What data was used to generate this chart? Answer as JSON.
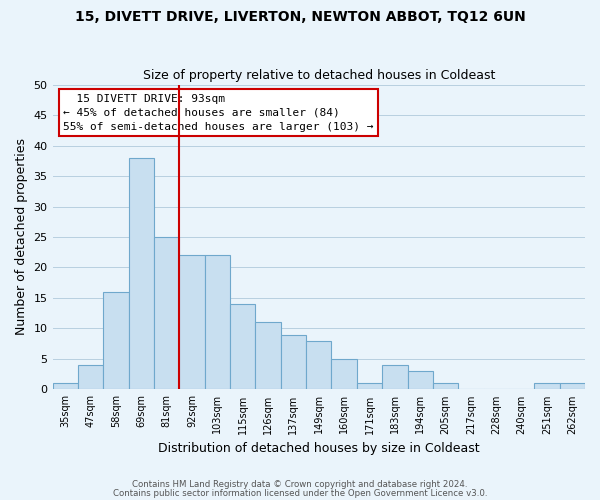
{
  "title1": "15, DIVETT DRIVE, LIVERTON, NEWTON ABBOT, TQ12 6UN",
  "title2": "Size of property relative to detached houses in Coldeast",
  "xlabel": "Distribution of detached houses by size in Coldeast",
  "ylabel": "Number of detached properties",
  "footer1": "Contains HM Land Registry data © Crown copyright and database right 2024.",
  "footer2": "Contains public sector information licensed under the Open Government Licence v3.0.",
  "bins": [
    "35sqm",
    "47sqm",
    "58sqm",
    "69sqm",
    "81sqm",
    "92sqm",
    "103sqm",
    "115sqm",
    "126sqm",
    "137sqm",
    "149sqm",
    "160sqm",
    "171sqm",
    "183sqm",
    "194sqm",
    "205sqm",
    "217sqm",
    "228sqm",
    "240sqm",
    "251sqm",
    "262sqm"
  ],
  "values": [
    1,
    4,
    16,
    38,
    25,
    22,
    22,
    14,
    11,
    9,
    8,
    5,
    1,
    4,
    3,
    1,
    0,
    0,
    0,
    1,
    1
  ],
  "bar_color": "#c8dff0",
  "bar_edge_color": "#6fa8cc",
  "vline_x_index": 5,
  "vline_color": "#cc0000",
  "annotation_title": "15 DIVETT DRIVE: 93sqm",
  "annotation_line1": "← 45% of detached houses are smaller (84)",
  "annotation_line2": "55% of semi-detached houses are larger (103) →",
  "annotation_box_edge": "#cc0000",
  "ylim": [
    0,
    50
  ],
  "yticks": [
    0,
    5,
    10,
    15,
    20,
    25,
    30,
    35,
    40,
    45,
    50
  ],
  "bg_color": "#eaf0f8",
  "plot_bg_color": "#eaf0f8"
}
